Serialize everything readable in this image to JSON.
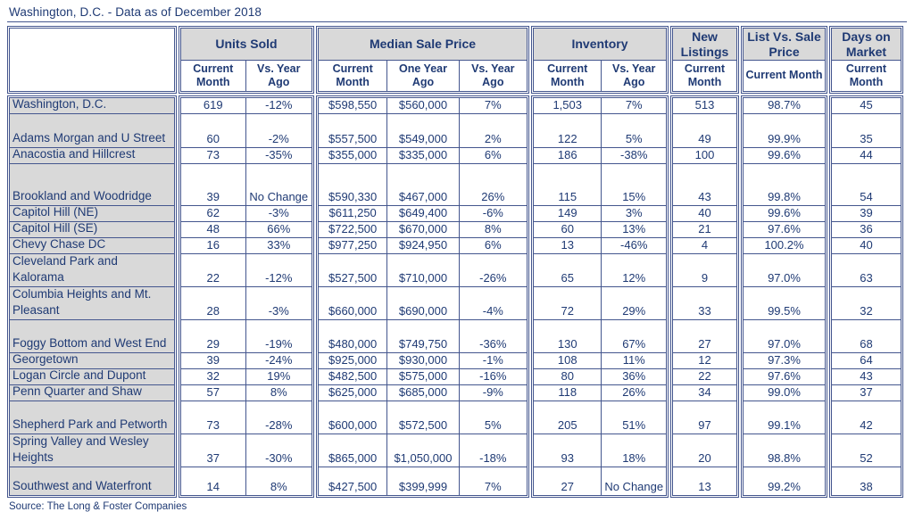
{
  "title": "Washington, D.C. - Data as of December 2018",
  "source": "Source: The Long & Foster Companies",
  "colors": {
    "text": "#1f3a74",
    "border": "#44568e",
    "header_bg": "#d9d9d9",
    "label_bg": "#d9d9d9",
    "page_bg": "#ffffff"
  },
  "columns": {
    "groups": [
      {
        "label": "Units Sold",
        "sub": [
          "Current Month",
          "Vs. Year Ago"
        ]
      },
      {
        "label": "Median Sale Price",
        "sub": [
          "Current Month",
          "One Year Ago",
          "Vs. Year Ago"
        ]
      },
      {
        "label": "Inventory",
        "sub": [
          "Current Month",
          "Vs. Year Ago"
        ]
      },
      {
        "label": "New Listings",
        "sub": [
          "Current Month"
        ]
      },
      {
        "label": "List Vs. Sale Price",
        "sub": [
          "Current Month"
        ]
      },
      {
        "label": "Days on Market",
        "sub": [
          "Current Month"
        ]
      }
    ]
  },
  "rows": [
    {
      "name": "Washington, D.C.",
      "values": [
        "619",
        "-12%",
        "$598,550",
        "$560,000",
        "7%",
        "1,503",
        "7%",
        "513",
        "98.7%",
        "45"
      ]
    },
    {
      "name": "Adams Morgan and U Street",
      "values": [
        "60",
        "-2%",
        "$557,500",
        "$549,000",
        "2%",
        "122",
        "5%",
        "49",
        "99.9%",
        "35"
      ]
    },
    {
      "name": "Anacostia and Hillcrest",
      "values": [
        "73",
        "-35%",
        "$355,000",
        "$335,000",
        "6%",
        "186",
        "-38%",
        "100",
        "99.6%",
        "44"
      ]
    },
    {
      "name": "Brookland and Woodridge",
      "values": [
        "39",
        "No Change",
        "$590,330",
        "$467,000",
        "26%",
        "115",
        "15%",
        "43",
        "99.8%",
        "54"
      ]
    },
    {
      "name": "Capitol Hill (NE)",
      "values": [
        "62",
        "-3%",
        "$611,250",
        "$649,400",
        "-6%",
        "149",
        "3%",
        "40",
        "99.6%",
        "39"
      ]
    },
    {
      "name": "Capitol Hill (SE)",
      "values": [
        "48",
        "66%",
        "$722,500",
        "$670,000",
        "8%",
        "60",
        "13%",
        "21",
        "97.6%",
        "36"
      ]
    },
    {
      "name": "Chevy Chase DC",
      "values": [
        "16",
        "33%",
        "$977,250",
        "$924,950",
        "6%",
        "13",
        "-46%",
        "4",
        "100.2%",
        "40"
      ]
    },
    {
      "name": "Cleveland Park and Kalorama",
      "values": [
        "22",
        "-12%",
        "$527,500",
        "$710,000",
        "-26%",
        "65",
        "12%",
        "9",
        "97.0%",
        "63"
      ]
    },
    {
      "name": "Columbia Heights and Mt. Pleasant",
      "values": [
        "28",
        "-3%",
        "$660,000",
        "$690,000",
        "-4%",
        "72",
        "29%",
        "33",
        "99.5%",
        "32"
      ]
    },
    {
      "name": "Foggy Bottom and West End",
      "values": [
        "29",
        "-19%",
        "$480,000",
        "$749,750",
        "-36%",
        "130",
        "67%",
        "27",
        "97.0%",
        "68"
      ]
    },
    {
      "name": "Georgetown",
      "values": [
        "39",
        "-24%",
        "$925,000",
        "$930,000",
        "-1%",
        "108",
        "11%",
        "12",
        "97.3%",
        "64"
      ]
    },
    {
      "name": "Logan Circle and Dupont",
      "values": [
        "32",
        "19%",
        "$482,500",
        "$575,000",
        "-16%",
        "80",
        "36%",
        "22",
        "97.6%",
        "43"
      ]
    },
    {
      "name": "Penn Quarter and Shaw",
      "values": [
        "57",
        "8%",
        "$625,000",
        "$685,000",
        "-9%",
        "118",
        "26%",
        "34",
        "99.0%",
        "37"
      ]
    },
    {
      "name": "Shepherd Park and Petworth",
      "values": [
        "73",
        "-28%",
        "$600,000",
        "$572,500",
        "5%",
        "205",
        "51%",
        "97",
        "99.1%",
        "42"
      ]
    },
    {
      "name": "Spring Valley and Wesley Heights",
      "values": [
        "37",
        "-30%",
        "$865,000",
        "$1,050,000",
        "-18%",
        "93",
        "18%",
        "20",
        "98.8%",
        "52"
      ]
    },
    {
      "name": "Southwest and Waterfront",
      "values": [
        "14",
        "8%",
        "$427,500",
        "$399,999",
        "7%",
        "27",
        "No Change",
        "13",
        "99.2%",
        "38"
      ]
    }
  ]
}
